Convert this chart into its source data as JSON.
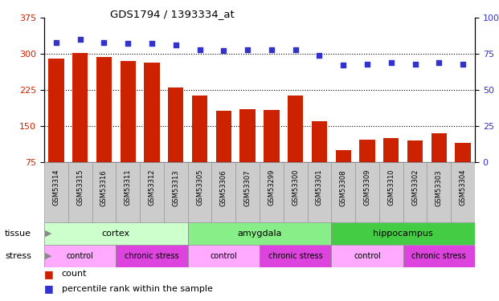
{
  "title": "GDS1794 / 1393334_at",
  "samples": [
    "GSM53314",
    "GSM53315",
    "GSM53316",
    "GSM53311",
    "GSM53312",
    "GSM53313",
    "GSM53305",
    "GSM53306",
    "GSM53307",
    "GSM53299",
    "GSM53300",
    "GSM53301",
    "GSM53308",
    "GSM53309",
    "GSM53310",
    "GSM53302",
    "GSM53303",
    "GSM53304"
  ],
  "counts": [
    290,
    302,
    293,
    285,
    282,
    230,
    213,
    182,
    185,
    183,
    213,
    160,
    100,
    122,
    125,
    120,
    135,
    115
  ],
  "percentiles": [
    83,
    85,
    83,
    82,
    82,
    81,
    78,
    77,
    78,
    78,
    78,
    74,
    67,
    68,
    69,
    68,
    69,
    68
  ],
  "ylim_left": [
    75,
    375
  ],
  "ylim_right": [
    0,
    100
  ],
  "yticks_left": [
    75,
    150,
    225,
    300,
    375
  ],
  "yticks_right": [
    0,
    25,
    50,
    75,
    100
  ],
  "bar_color": "#cc2200",
  "dot_color": "#3333cc",
  "tissue_groups": [
    {
      "label": "cortex",
      "start": 0,
      "end": 6,
      "color": "#ccffcc"
    },
    {
      "label": "amygdala",
      "start": 6,
      "end": 12,
      "color": "#88ee88"
    },
    {
      "label": "hippocampus",
      "start": 12,
      "end": 18,
      "color": "#44cc44"
    }
  ],
  "stress_groups": [
    {
      "label": "control",
      "start": 0,
      "end": 3,
      "color": "#ffaaff"
    },
    {
      "label": "chronic stress",
      "start": 3,
      "end": 6,
      "color": "#dd44dd"
    },
    {
      "label": "control",
      "start": 6,
      "end": 9,
      "color": "#ffaaff"
    },
    {
      "label": "chronic stress",
      "start": 9,
      "end": 12,
      "color": "#dd44dd"
    },
    {
      "label": "control",
      "start": 12,
      "end": 15,
      "color": "#ffaaff"
    },
    {
      "label": "chronic stress",
      "start": 15,
      "end": 18,
      "color": "#dd44dd"
    }
  ],
  "legend_count_color": "#cc2200",
  "legend_pct_color": "#3333cc",
  "bg_color": "#ffffff",
  "plot_bg_color": "#ffffff",
  "tick_label_color_left": "#cc2200",
  "tick_label_color_right": "#3333cc",
  "xtick_box_color": "#cccccc"
}
